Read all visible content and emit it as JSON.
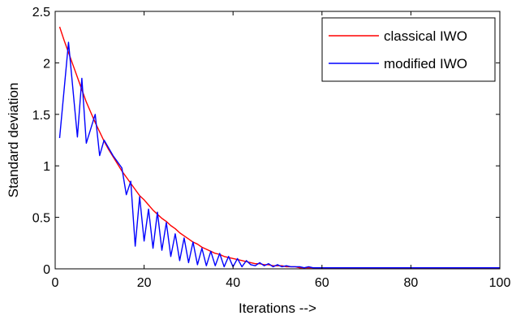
{
  "chart_data": {
    "type": "line",
    "xlabel": "Iterations  -->",
    "ylabel": "Standard deviation",
    "xlim": [
      0,
      100
    ],
    "ylim": [
      0,
      2.5
    ],
    "xticks": [
      0,
      20,
      40,
      60,
      80,
      100
    ],
    "yticks": [
      0,
      0.5,
      1,
      1.5,
      2,
      2.5
    ],
    "xtick_labels": [
      "0",
      "20",
      "40",
      "60",
      "80",
      "100"
    ],
    "ytick_labels": [
      "0",
      "0.5",
      "1",
      "1.5",
      "2",
      "2.5"
    ],
    "grid": false,
    "legend_position": "top-right",
    "series": [
      {
        "name": "classical IWO",
        "color": "#ff0000",
        "x": [
          1,
          2,
          3,
          4,
          5,
          6,
          7,
          8,
          9,
          10,
          11,
          12,
          13,
          14,
          15,
          16,
          17,
          18,
          19,
          20,
          21,
          22,
          23,
          24,
          25,
          26,
          27,
          28,
          29,
          30,
          31,
          32,
          33,
          34,
          35,
          36,
          37,
          38,
          39,
          40,
          41,
          42,
          43,
          44,
          45,
          46,
          47,
          48,
          49,
          50,
          51,
          52,
          53,
          54,
          55,
          56,
          57,
          58,
          59,
          60,
          62,
          64,
          66,
          68,
          70,
          75,
          80,
          85,
          90,
          95,
          100
        ],
        "y": [
          2.35,
          2.22,
          2.1,
          1.98,
          1.86,
          1.74,
          1.62,
          1.52,
          1.42,
          1.33,
          1.24,
          1.16,
          1.09,
          1.02,
          0.95,
          0.89,
          0.83,
          0.77,
          0.71,
          0.67,
          0.62,
          0.57,
          0.53,
          0.49,
          0.46,
          0.42,
          0.39,
          0.35,
          0.32,
          0.29,
          0.26,
          0.24,
          0.21,
          0.19,
          0.17,
          0.15,
          0.14,
          0.12,
          0.11,
          0.1,
          0.09,
          0.08,
          0.07,
          0.06,
          0.05,
          0.05,
          0.04,
          0.04,
          0.03,
          0.03,
          0.03,
          0.02,
          0.02,
          0.02,
          0.01,
          0.01,
          0.01,
          0.01,
          0.01,
          0.01,
          0.01,
          0.01,
          0.01,
          0.01,
          0.01,
          0.01,
          0.01,
          0.01,
          0.01,
          0.01,
          0.01
        ]
      },
      {
        "name": "modified IWO",
        "color": "#0000ff",
        "x": [
          1,
          3,
          5,
          6,
          7,
          9,
          10,
          11,
          13,
          15,
          16,
          17,
          18,
          19,
          20,
          21,
          22,
          23,
          24,
          25,
          26,
          27,
          28,
          29,
          30,
          31,
          32,
          33,
          34,
          35,
          36,
          37,
          38,
          39,
          40,
          41,
          42,
          43,
          44,
          45,
          46,
          47,
          48,
          49,
          50,
          51,
          52,
          53,
          54,
          55,
          56,
          57,
          58,
          59,
          60,
          70,
          80,
          90,
          100
        ],
        "y": [
          1.27,
          2.2,
          1.28,
          1.85,
          1.22,
          1.5,
          1.1,
          1.25,
          1.1,
          0.98,
          0.72,
          0.85,
          0.22,
          0.7,
          0.27,
          0.58,
          0.2,
          0.55,
          0.18,
          0.45,
          0.12,
          0.34,
          0.08,
          0.3,
          0.06,
          0.26,
          0.04,
          0.2,
          0.03,
          0.17,
          0.03,
          0.15,
          0.02,
          0.12,
          0.02,
          0.1,
          0.02,
          0.08,
          0.04,
          0.03,
          0.06,
          0.03,
          0.05,
          0.02,
          0.04,
          0.02,
          0.03,
          0.02,
          0.02,
          0.02,
          0.01,
          0.02,
          0.01,
          0.01,
          0.01,
          0.01,
          0.01,
          0.01,
          0.01
        ]
      }
    ]
  }
}
